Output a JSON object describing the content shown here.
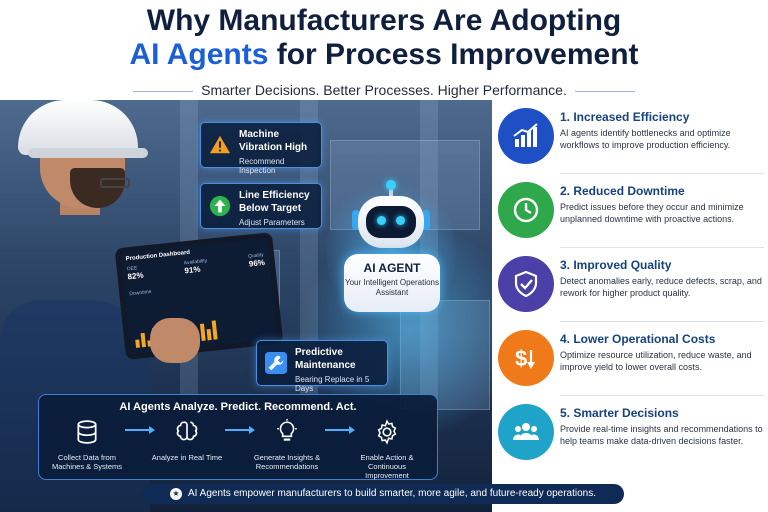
{
  "header": {
    "title_line1": "Why Manufacturers Are Adopting",
    "title_accent": "AI Agents",
    "title_line2_rest": " for Process Improvement",
    "subtitle": "Smarter Decisions. Better Processes. Higher Performance."
  },
  "alerts": [
    {
      "title": "Machine Vibration High",
      "detail": "Recommend Inspection",
      "icon": "warning-icon",
      "color": "#f0a020"
    },
    {
      "title": "Line Efficiency Below Target",
      "detail": "Adjust Parameters",
      "icon": "arrow-up-icon",
      "color": "#2bb24c"
    },
    {
      "title": "Predictive Maintenance",
      "detail": "Bearing Replace in 5 Days",
      "icon": "wrench-icon",
      "color": "#3a8ef0"
    }
  ],
  "tablet": {
    "title": "Production Dashboard",
    "stats": [
      {
        "label": "OEE",
        "value": "82%"
      },
      {
        "label": "Availability",
        "value": "91%"
      },
      {
        "label": "Quality",
        "value": "96%"
      }
    ],
    "sub_label": "Downtime"
  },
  "agent": {
    "title": "AI AGENT",
    "subtitle": "Your Intelligent Operations Assistant"
  },
  "process": {
    "title": "AI Agents Analyze. Predict. Recommend. Act.",
    "steps": [
      {
        "label": "Collect Data from Machines & Systems",
        "icon": "database-icon"
      },
      {
        "label": "Analyze in Real Time",
        "icon": "brain-icon"
      },
      {
        "label": "Generate Insights & Recommendations",
        "icon": "lightbulb-icon"
      },
      {
        "label": "Enable Action & Continuous Improvement",
        "icon": "gear-icon"
      }
    ]
  },
  "benefits": [
    {
      "title": "1. Increased Efficiency",
      "desc": "AI agents identify bottlenecks and optimize workflows to improve production efficiency.",
      "icon": "chart-growth-icon",
      "color": "#1f4fc4"
    },
    {
      "title": "2. Reduced Downtime",
      "desc": "Predict issues before they occur and minimize unplanned downtime with proactive actions.",
      "icon": "clock-icon",
      "color": "#2ea84a"
    },
    {
      "title": "3. Improved Quality",
      "desc": "Detect anomalies early, reduce defects, scrap, and rework for higher product quality.",
      "icon": "shield-check-icon",
      "color": "#4b3fa8"
    },
    {
      "title": "4. Lower Operational Costs",
      "desc": "Optimize resource utilization, reduce waste, and improve yield to lower overall costs.",
      "icon": "dollar-down-icon",
      "color": "#f07a1a"
    },
    {
      "title": "5. Smarter Decisions",
      "desc": "Provide real-time insights and recommendations to help teams make data-driven decisions faster.",
      "icon": "team-icon",
      "color": "#1fa3c8"
    }
  ],
  "footer": {
    "text": "AI Agents empower manufacturers to build smarter, more agile, and future-ready operations."
  }
}
